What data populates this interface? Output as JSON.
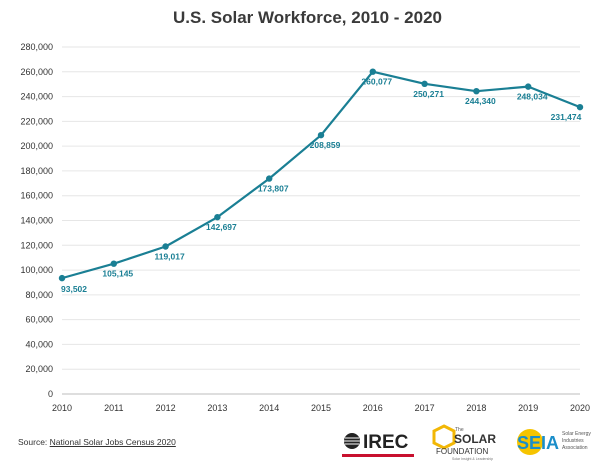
{
  "chart_data": {
    "type": "line",
    "title": "U.S. Solar Workforce, 2010 - 2020",
    "xlabel": "",
    "ylabel": "",
    "x": [
      "2010",
      "2011",
      "2012",
      "2013",
      "2014",
      "2015",
      "2016",
      "2017",
      "2018",
      "2019",
      "2020"
    ],
    "series": [
      {
        "values": [
          93502,
          105145,
          119017,
          142697,
          173807,
          208859,
          260077,
          250271,
          244340,
          248034,
          231474
        ]
      }
    ],
    "data_labels": [
      "93,502",
      "105,145",
      "119,017",
      "142,697",
      "173,807",
      "208,859",
      "260,077",
      "250,271",
      "244,340",
      "248,034",
      "231,474"
    ],
    "ylim": [
      0,
      280000
    ],
    "yticks": [
      0,
      20000,
      40000,
      60000,
      80000,
      100000,
      120000,
      140000,
      160000,
      180000,
      200000,
      220000,
      240000,
      260000,
      280000
    ],
    "ytick_labels": [
      "0",
      "20,000",
      "40,000",
      "60,000",
      "80,000",
      "100,000",
      "120,000",
      "140,000",
      "160,000",
      "180,000",
      "200,000",
      "220,000",
      "240,000",
      "260,000",
      "280,000"
    ],
    "grid": true,
    "legend": "none"
  },
  "colors": {
    "series": "#1a7f94",
    "grid": "#e6e6e6",
    "text": "#333333",
    "irec_red": "#c8102e",
    "solar_gold": "#f2b705",
    "seia_blue": "#1b8ec9",
    "seia_yellow": "#f6c400"
  },
  "source": {
    "prefix": "Source: ",
    "link_text": "National Solar Jobs Census 2020"
  },
  "logos": {
    "irec": {
      "text": "IREC"
    },
    "solar_foundation": {
      "small": "The",
      "main": "SOLAR",
      "sub": "FOUNDATION",
      "tagline": "Solar Insight & Leadership"
    },
    "seia": {
      "main": "SEIA",
      "line1": "Solar Energy",
      "line2": "Industries",
      "line3": "Association"
    }
  }
}
